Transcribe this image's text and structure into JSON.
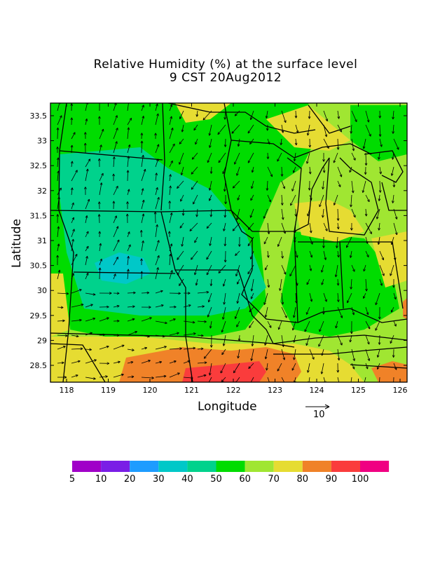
{
  "title": {
    "line1": "Relative Humidity (%) at the surface level",
    "line2": "9 CST 20Aug2012"
  },
  "axes": {
    "xlabel": "Longitude",
    "ylabel": "Latitude",
    "x_ticks": [
      "118",
      "119",
      "120",
      "121",
      "122",
      "123",
      "124",
      "125",
      "126"
    ],
    "y_ticks": [
      "28.5",
      "29",
      "29.5",
      "30",
      "30.5",
      "31",
      "31.5",
      "32",
      "32.5",
      "33",
      "33.5"
    ]
  },
  "vector_reference": {
    "label": "10"
  },
  "colorbar": {
    "labels": [
      "5",
      "10",
      "20",
      "30",
      "40",
      "50",
      "60",
      "70",
      "80",
      "90",
      "100"
    ],
    "colors": [
      "#a000c8",
      "#7a1ee6",
      "#1e9cff",
      "#00c8c8",
      "#00d28c",
      "#00dc00",
      "#a0e632",
      "#e6dc32",
      "#f08228",
      "#fa3c3c",
      "#f00082"
    ]
  },
  "fill_colors": {
    "rh_40": "#00d28c",
    "rh_50": "#00dc00",
    "rh_60": "#a0e632",
    "rh_70": "#e6dc32",
    "rh_80": "#f08228",
    "rh_90": "#fa3c3c",
    "rh_30": "#00c8c8"
  }
}
